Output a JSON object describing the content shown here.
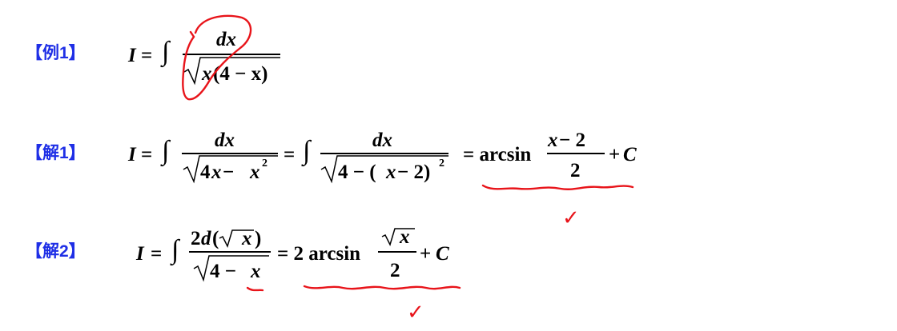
{
  "labels": {
    "ex1": "【例1】",
    "sol1": "【解1】",
    "sol2": "【解2】"
  },
  "ex1": {
    "lhs": "I",
    "eq": "=",
    "integral": "∫",
    "num": "dx",
    "den_x": "x",
    "den_rest": "(4 − x)"
  },
  "sol1": {
    "lhs": "I",
    "eq1": "=",
    "integral1": "∫",
    "num1": "dx",
    "den1_a": "4",
    "den1_x": "x",
    "den1_minus": " − ",
    "den1_x2": "x",
    "den1_sq": "2",
    "eq2": "=",
    "integral2": "∫",
    "num2": "dx",
    "den2_a": "4 − (",
    "den2_x": "x",
    "den2_b": " − 2)",
    "den2_sq": "2",
    "eq3": "= arcsin",
    "frac_num_x": "x",
    "frac_num_rest": " − 2",
    "frac_den": "2",
    "tail": "+",
    "const": "C"
  },
  "sol2": {
    "lhs": "I",
    "eq1": "=",
    "integral": "∫",
    "num_a": "2",
    "num_d": "d",
    "num_p1": "(",
    "num_x": "x",
    "num_p2": ")",
    "den_a": "4 −",
    "den_x": "x",
    "eq2": "= 2 arcsin",
    "frac_num_x": "x",
    "frac_den": "2",
    "tail": "+",
    "const": "C"
  },
  "annotations": {
    "check1": "✓",
    "check2": "✓",
    "color": "#e8141a"
  }
}
